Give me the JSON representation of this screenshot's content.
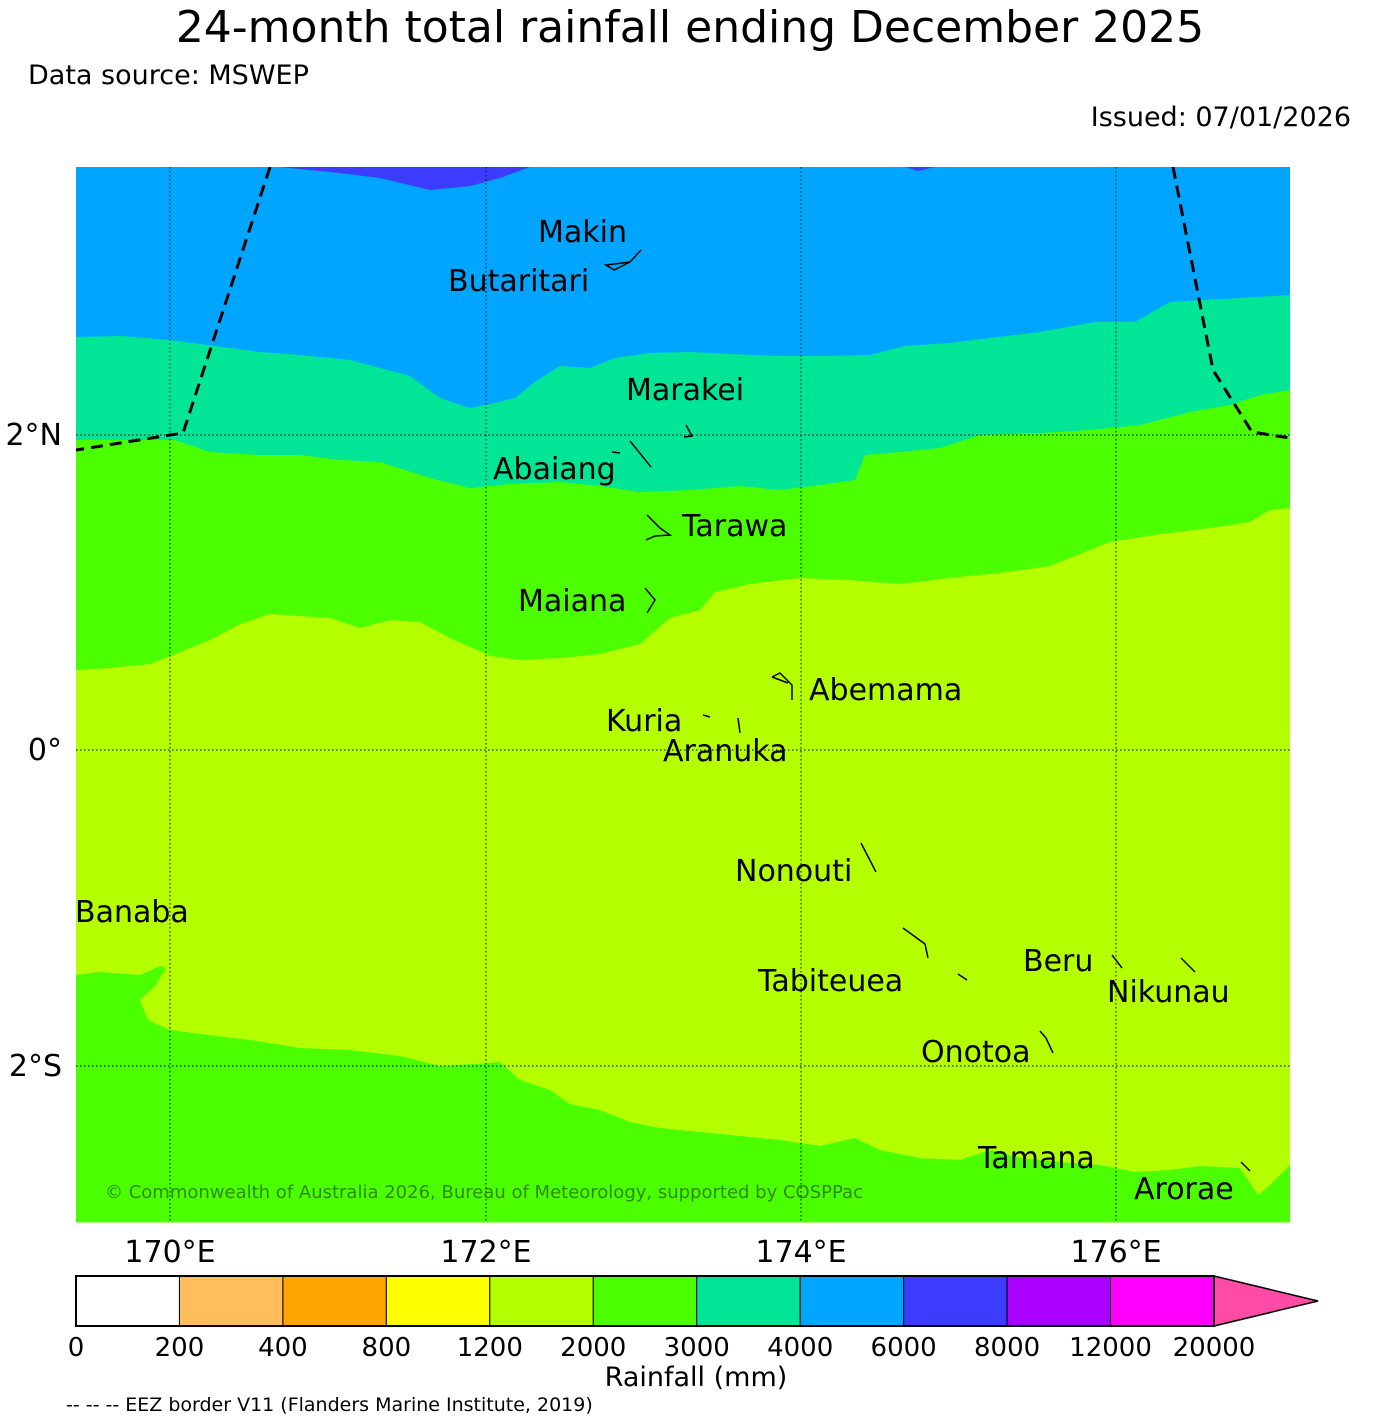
{
  "header": {
    "title": "24-month total rainfall ending December 2025",
    "source": "Data source: MSWEP",
    "issued": "Issued: 07/01/2026"
  },
  "map": {
    "lat_labels": [
      "2°N",
      "0°",
      "2°S"
    ],
    "lon_labels": [
      "170°E",
      "172°E",
      "174°E",
      "176°E"
    ],
    "copyright": "© Commonwealth of Australia 2026, Bureau of Meteorology, supported by COSPPac",
    "islands": {
      "makin": "Makin",
      "butaritari": "Butaritari",
      "marakei": "Marakei",
      "abaiang": "Abaiang",
      "tarawa": "Tarawa",
      "maiana": "Maiana",
      "abemama": "Abemama",
      "kuria": "Kuria",
      "aranuka": "Aranuka",
      "nonouti": "Nonouti",
      "banaba": "Banaba",
      "beru": "Beru",
      "tabiteuea": "Tabiteuea",
      "nikunau": "Nikunau",
      "onotoa": "Onotoa",
      "tamana": "Tamana",
      "arorae": "Arorae"
    },
    "band_colors": {
      "band_3000_4000": "#00e696",
      "band_4000_6000": "#00a5ff",
      "band_6000_8000": "#3c3cff",
      "band_2000_3000": "#4bff00",
      "band_1200_2000": "#b4ff00"
    }
  },
  "colorbar": {
    "title": "Rainfall (mm)",
    "ticks": [
      "0",
      "200",
      "400",
      "800",
      "1200",
      "2000",
      "3000",
      "4000",
      "6000",
      "8000",
      "12000",
      "20000"
    ],
    "colors": [
      "#ffffff",
      "#ffbe5a",
      "#ffa500",
      "#ffff00",
      "#b4ff00",
      "#4bff00",
      "#00e696",
      "#00a5ff",
      "#3c3cff",
      "#aa00ff",
      "#ff00ff"
    ],
    "extend_color": "#ff4ba5"
  },
  "footer": {
    "eez_note": "-- -- -- EEZ border V11 (Flanders Marine Institute, 2019)"
  }
}
